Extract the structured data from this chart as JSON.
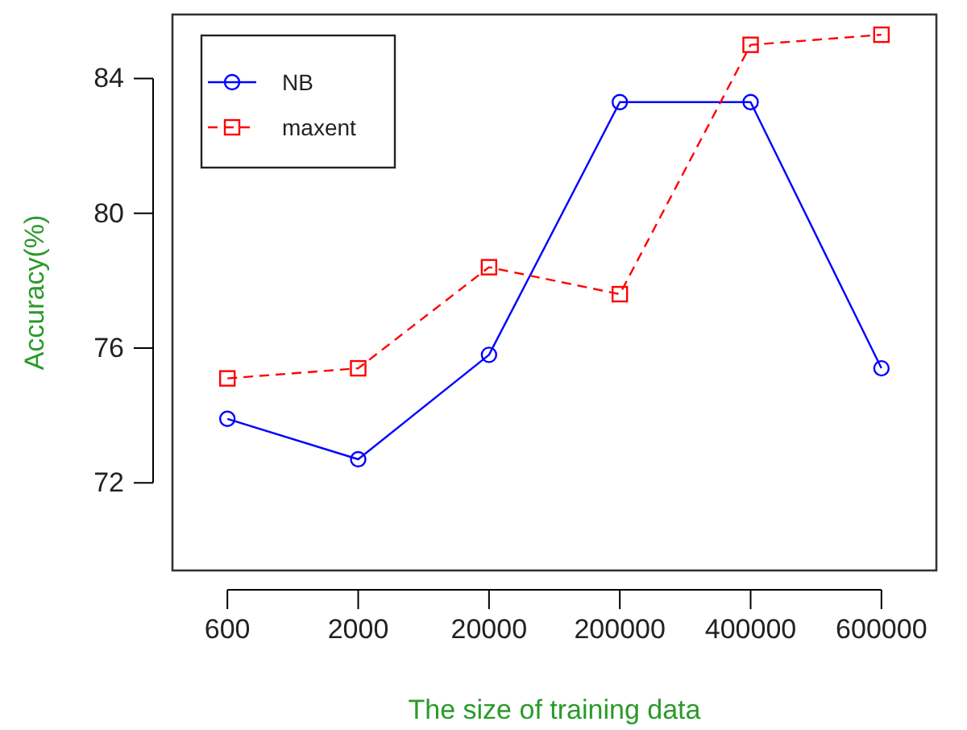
{
  "chart_data": {
    "type": "line",
    "xlabel": "The size of training data",
    "ylabel": "Accuracy(%)",
    "categories": [
      "600",
      "2000",
      "20000",
      "200000",
      "400000",
      "600000"
    ],
    "series": [
      {
        "name": "NB",
        "color": "#0000ff",
        "marker": "circle",
        "line_style": "solid",
        "values": [
          73.9,
          72.7,
          75.8,
          83.3,
          83.3,
          75.4
        ]
      },
      {
        "name": "maxent",
        "color": "#ff0000",
        "marker": "square",
        "line_style": "dashed",
        "values": [
          75.1,
          75.4,
          78.4,
          77.6,
          85.0,
          85.3
        ]
      }
    ],
    "ylim": [
      69.4,
      85.9
    ],
    "yticks": [
      72,
      76,
      80,
      84
    ],
    "grid": false,
    "legend": "top left"
  }
}
